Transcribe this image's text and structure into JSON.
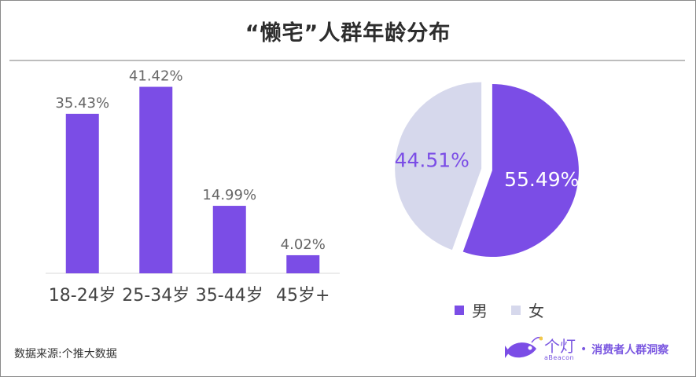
{
  "title": "“懒宅”人群年龄分布",
  "source": "数据来源:个推大数据",
  "brand": {
    "name": "个灯",
    "sub": "aBeacon",
    "slogan": "消费者人群洞察",
    "dot": "•"
  },
  "colors": {
    "purple": "#7b4de6",
    "lavender": "#d6d8ec"
  },
  "chart_data": [
    {
      "type": "bar",
      "categories": [
        "18-24岁",
        "25-34岁",
        "35-44岁",
        "45岁+"
      ],
      "values": [
        35.43,
        41.42,
        14.99,
        4.02
      ],
      "labels": [
        "35.43%",
        "41.42%",
        "14.99%",
        "4.02%"
      ],
      "ylim": [
        0,
        45
      ],
      "grid": false
    },
    {
      "type": "pie",
      "slices": [
        {
          "name": "男",
          "value": 55.49,
          "label": "55.49%"
        },
        {
          "name": "女",
          "value": 44.51,
          "label": "44.51%"
        }
      ],
      "legend": "bottom"
    }
  ]
}
